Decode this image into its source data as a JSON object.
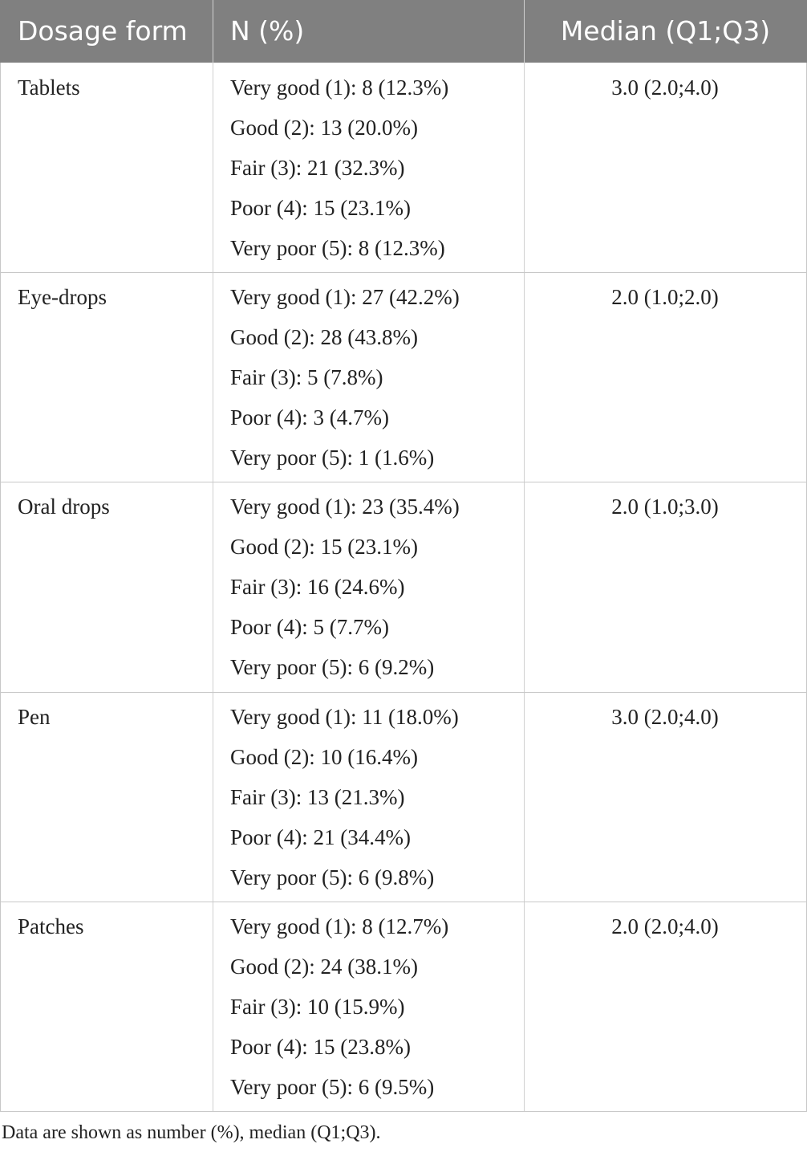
{
  "table": {
    "header": [
      "Dosage form",
      "N (%)",
      "Median (Q1;Q3)"
    ],
    "rows": [
      {
        "form": "Tablets",
        "counts": [
          "Very good (1): 8 (12.3%)",
          "Good (2): 13 (20.0%)",
          "Fair (3): 21 (32.3%)",
          "Poor (4): 15 (23.1%)",
          "Very poor (5): 8 (12.3%)"
        ],
        "median": "3.0 (2.0;4.0)"
      },
      {
        "form": "Eye-drops",
        "counts": [
          "Very good (1): 27 (42.2%)",
          "Good (2): 28 (43.8%)",
          "Fair (3): 5 (7.8%)",
          "Poor (4): 3 (4.7%)",
          "Very poor (5): 1 (1.6%)"
        ],
        "median": "2.0 (1.0;2.0)"
      },
      {
        "form": "Oral drops",
        "counts": [
          "Very good (1): 23 (35.4%)",
          "Good (2): 15 (23.1%)",
          "Fair (3): 16 (24.6%)",
          "Poor (4): 5 (7.7%)",
          "Very poor (5): 6 (9.2%)"
        ],
        "median": "2.0 (1.0;3.0)"
      },
      {
        "form": "Pen",
        "counts": [
          "Very good (1): 11 (18.0%)",
          "Good (2): 10 (16.4%)",
          "Fair (3): 13 (21.3%)",
          "Poor (4): 21 (34.4%)",
          "Very poor (5): 6 (9.8%)"
        ],
        "median": "3.0 (2.0;4.0)"
      },
      {
        "form": "Patches",
        "counts": [
          "Very good (1): 8 (12.7%)",
          "Good (2): 24 (38.1%)",
          "Fair (3): 10 (15.9%)",
          "Poor (4): 15 (23.8%)",
          "Very poor (5): 6 (9.5%)"
        ],
        "median": "2.0 (2.0;4.0)"
      }
    ]
  },
  "footnote": "Data are shown as number (%), median (Q1;Q3)."
}
